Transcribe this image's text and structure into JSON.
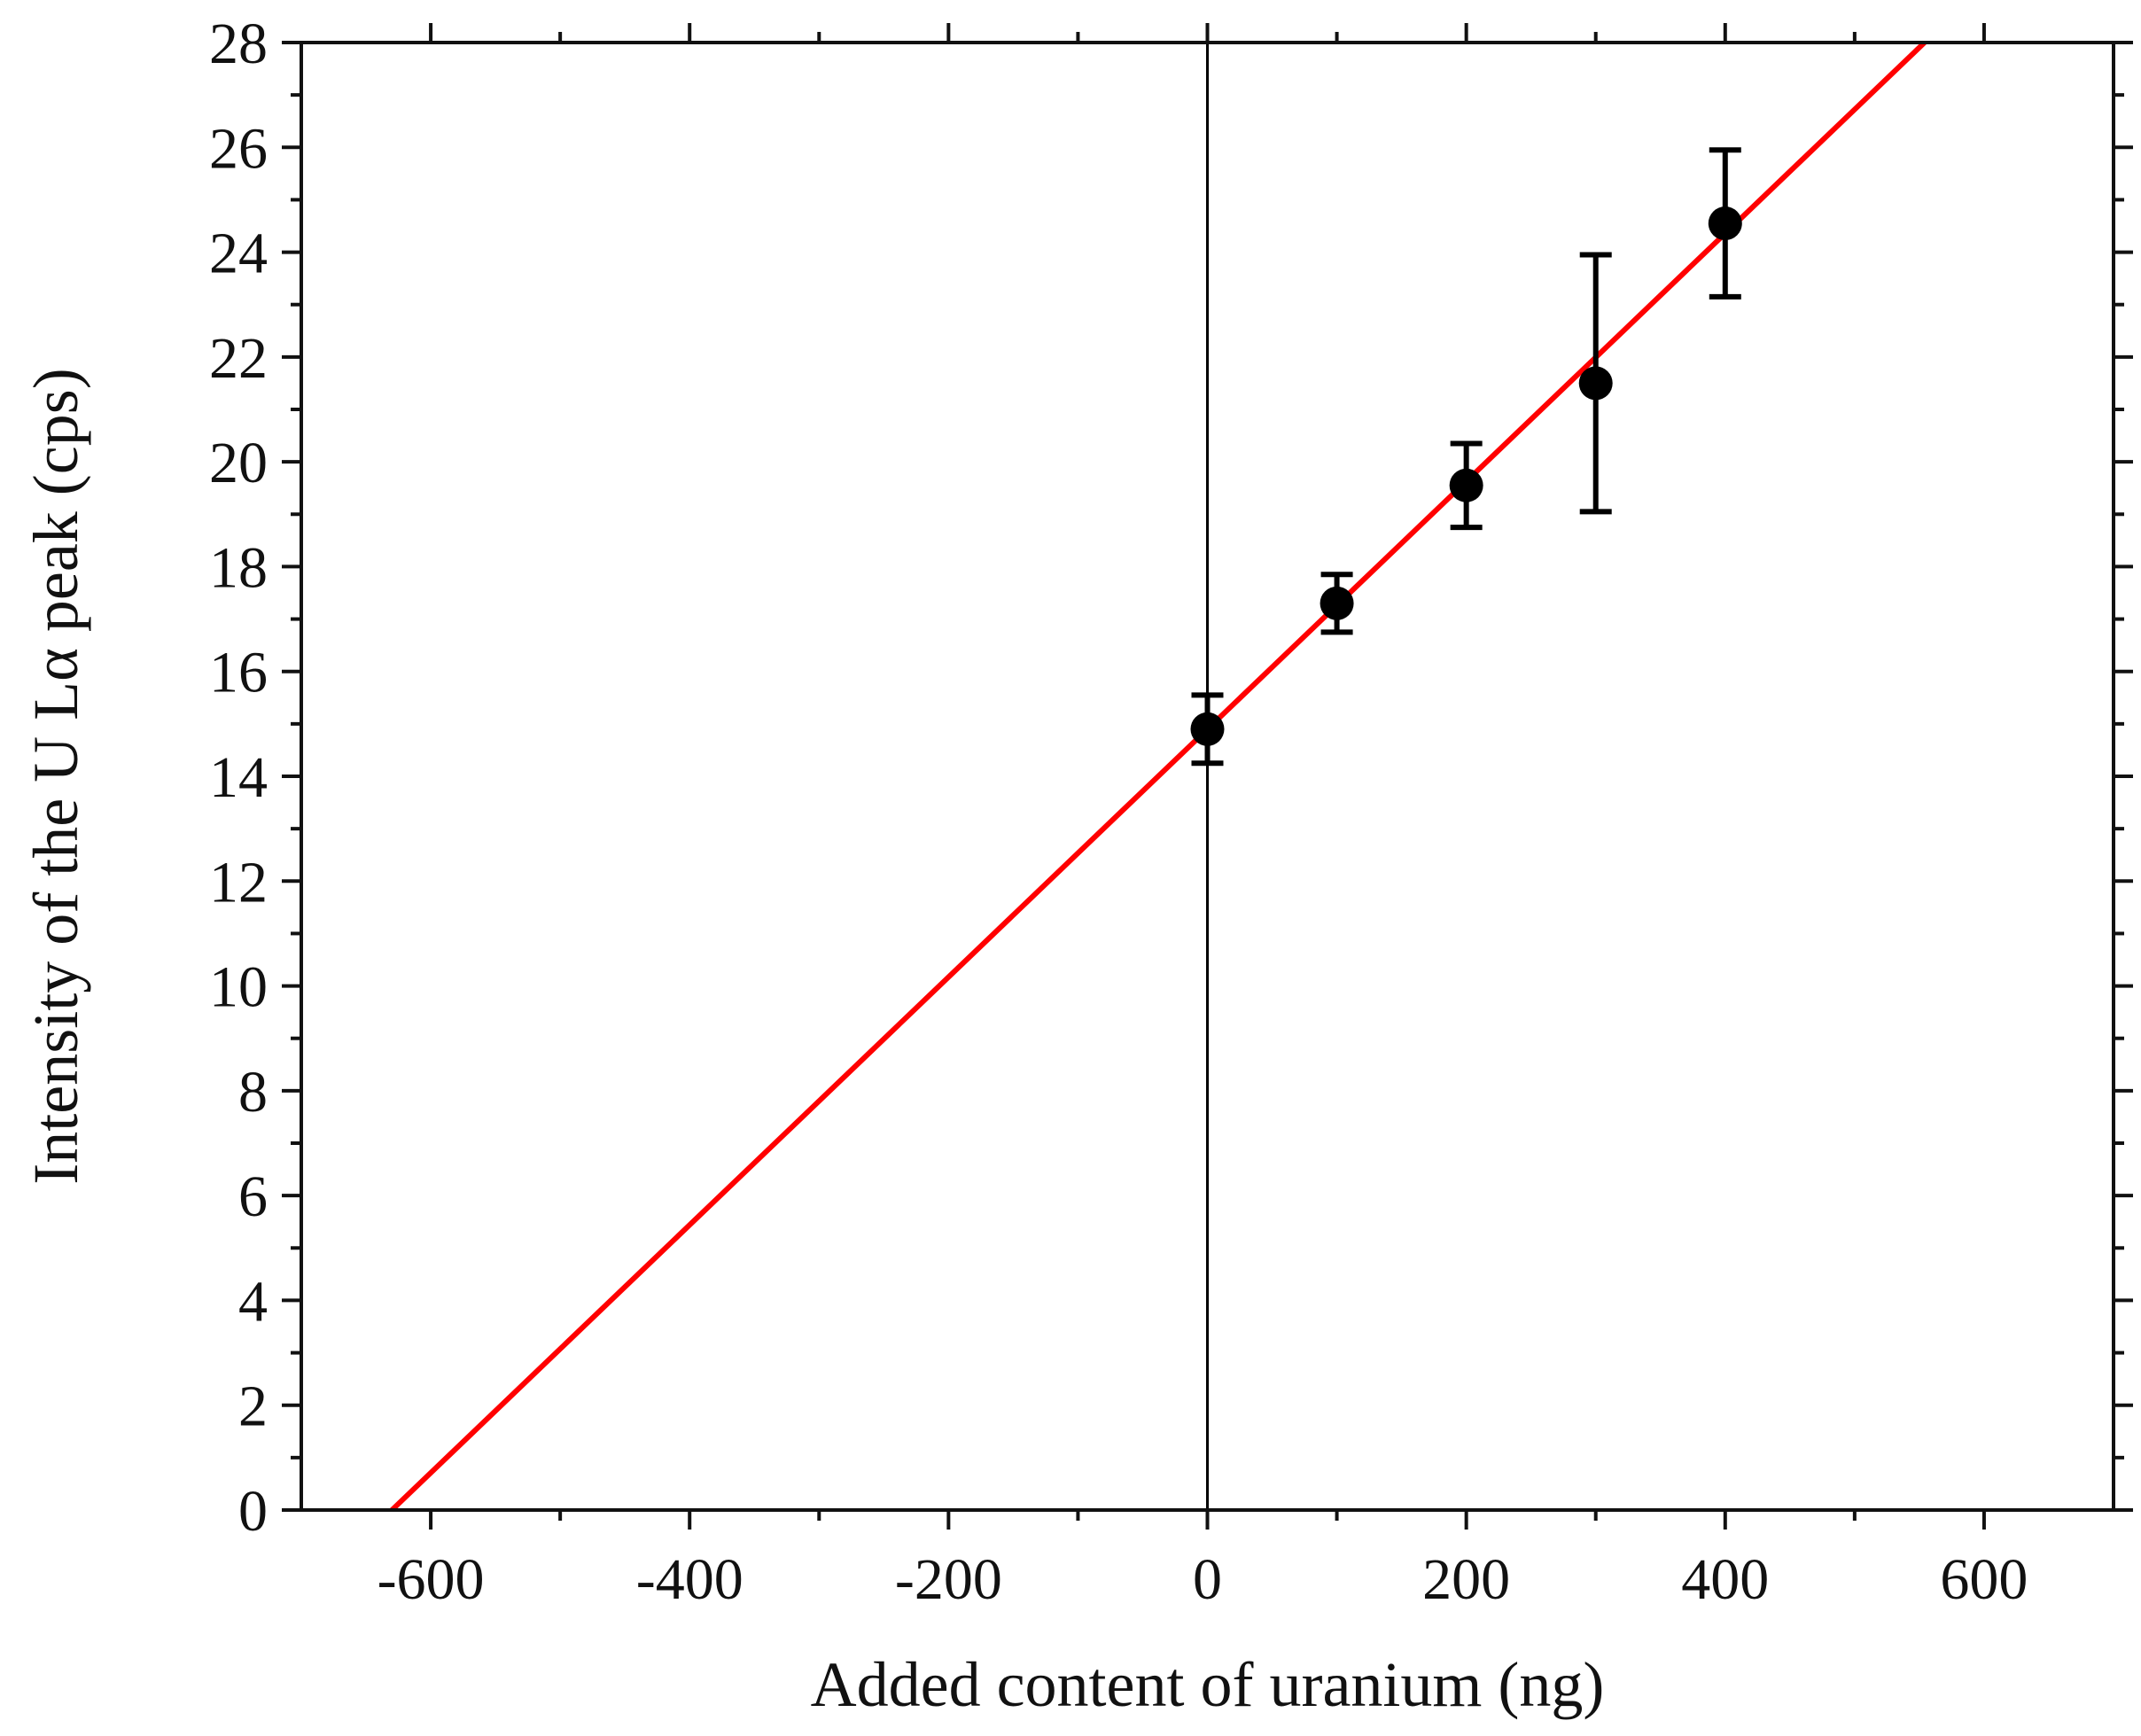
{
  "chart_data": {
    "type": "scatter",
    "title": "",
    "xlabel": "Added content of uranium (ng)",
    "ylabel": "Intensity of the U Lα peak (cps)",
    "xlim": [
      -700,
      700
    ],
    "ylim": [
      0,
      28
    ],
    "x_ticks": [
      -600,
      -400,
      -200,
      0,
      200,
      400,
      600
    ],
    "y_ticks": [
      0,
      2,
      4,
      6,
      8,
      10,
      12,
      14,
      16,
      18,
      20,
      22,
      24,
      26,
      28
    ],
    "x_minor_step": 100,
    "y_minor_step": 1,
    "grid": false,
    "series": [
      {
        "type": "scatter",
        "color": "#000000",
        "points": [
          {
            "x": 0,
            "y": 14.9,
            "err": 0.65
          },
          {
            "x": 100,
            "y": 17.3,
            "err": 0.55
          },
          {
            "x": 200,
            "y": 19.55,
            "err": 0.8
          },
          {
            "x": 300,
            "y": 21.5,
            "err": 2.45
          },
          {
            "x": 400,
            "y": 24.55,
            "err": 1.4
          }
        ]
      },
      {
        "type": "line",
        "color": "#ff0000",
        "points": [
          {
            "x": -630,
            "y": 0
          },
          {
            "x": 554,
            "y": 28
          }
        ]
      }
    ],
    "reference_line": {
      "x": 0,
      "color": "#000000"
    }
  }
}
